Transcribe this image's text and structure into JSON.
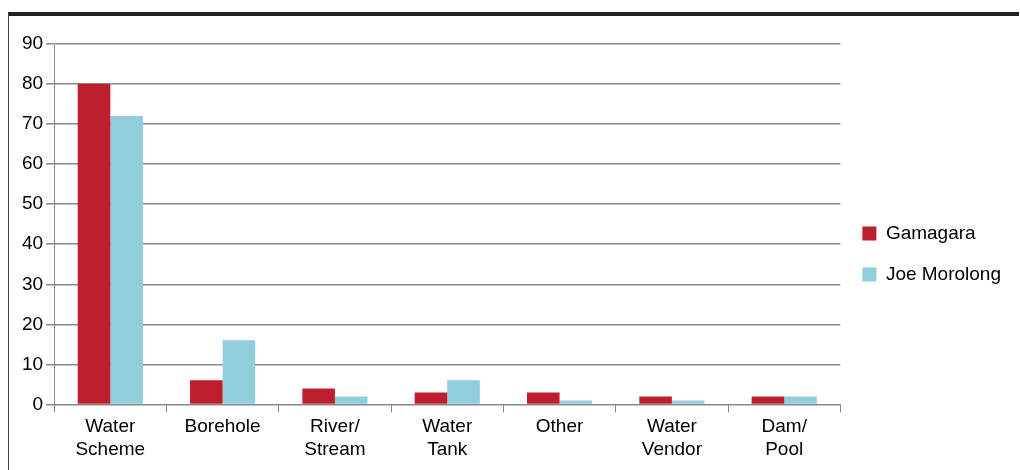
{
  "chart_data": {
    "type": "bar",
    "categories": [
      "Water Scheme",
      "Borehole",
      "River/Stream",
      "Water Tank",
      "Other",
      "Water Vendor",
      "Dam/Pool"
    ],
    "series": [
      {
        "name": "Gamagara",
        "color": "#be1e2d",
        "values": [
          80,
          6,
          4,
          3,
          3,
          2,
          2
        ]
      },
      {
        "name": "Joe Morolong",
        "color": "#92cddc",
        "values": [
          72,
          16,
          2,
          6,
          1,
          1,
          2
        ]
      }
    ],
    "ylim": [
      0,
      90
    ],
    "yticks": [
      0,
      10,
      20,
      30,
      40,
      50,
      60,
      70,
      80,
      90
    ],
    "grid": "y",
    "legend": "right"
  }
}
